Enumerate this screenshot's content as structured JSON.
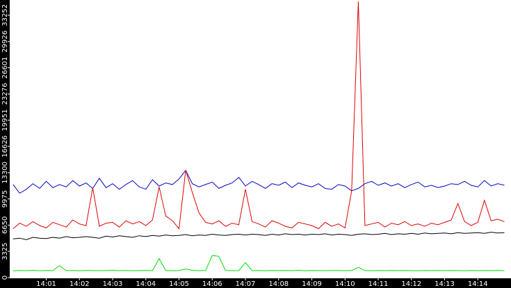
{
  "chart_data": {
    "type": "line",
    "x": [
      0,
      0.2,
      0.4,
      0.6,
      0.8,
      1,
      1.2,
      1.4,
      1.6,
      1.8,
      2,
      2.2,
      2.4,
      2.6,
      2.8,
      3,
      3.2,
      3.4,
      3.6,
      3.8,
      4,
      4.2,
      4.4,
      4.6,
      4.8,
      5,
      5.2,
      5.4,
      5.6,
      5.8,
      6,
      6.2,
      6.4,
      6.6,
      6.8,
      7,
      7.2,
      7.4,
      7.6,
      7.8,
      8,
      8.2,
      8.4,
      8.6,
      8.8,
      9,
      9.2,
      9.4,
      9.6,
      9.8,
      10,
      10.2,
      10.4,
      10.6,
      10.8,
      11,
      11.2,
      11.4,
      11.6,
      11.8,
      12,
      12.2,
      12.4,
      12.6,
      12.8,
      13,
      13.2,
      13.4,
      13.6,
      13.8,
      14,
      14.2,
      14.4,
      14.6,
      14.8
    ],
    "xlim": [
      -0.1,
      15.0
    ],
    "xticks": [
      {
        "value": 1,
        "label": "14:01"
      },
      {
        "value": 2,
        "label": "14:02"
      },
      {
        "value": 3,
        "label": "14:03"
      },
      {
        "value": 4,
        "label": "14:04"
      },
      {
        "value": 5,
        "label": "14:05"
      },
      {
        "value": 6,
        "label": "14:06"
      },
      {
        "value": 7,
        "label": "14:07"
      },
      {
        "value": 8,
        "label": "14:08"
      },
      {
        "value": 9,
        "label": "14:09"
      },
      {
        "value": 10,
        "label": "14:10"
      },
      {
        "value": 11,
        "label": "14:11"
      },
      {
        "value": 12,
        "label": "14:12"
      },
      {
        "value": 13,
        "label": "14:13"
      },
      {
        "value": 14,
        "label": "14:14"
      }
    ],
    "ylim": [
      0,
      35185
    ],
    "yticks": [
      0,
      3325,
      6650,
      9975,
      13300,
      16626,
      19951,
      23276,
      26601,
      29926,
      33252
    ],
    "series": [
      {
        "color": "#0000c8",
        "values": [
          11800,
          10700,
          11200,
          11900,
          11300,
          12200,
          11400,
          11800,
          11500,
          12300,
          11600,
          12000,
          11300,
          12600,
          11400,
          11900,
          11200,
          11800,
          12300,
          11500,
          11200,
          12400,
          11600,
          12000,
          11800,
          12500,
          13600,
          11900,
          11500,
          11800,
          12100,
          11300,
          11700,
          12000,
          12700,
          11600,
          12200,
          11800,
          11300,
          11900,
          11700,
          12100,
          11400,
          12000,
          11700,
          11500,
          11900,
          11300,
          11200,
          11800,
          11600,
          11000,
          11300,
          11900,
          12200,
          11700,
          12000,
          11600,
          11900,
          11400,
          11800,
          12100,
          11500,
          11700,
          11400,
          11600,
          11900,
          11800,
          12200,
          11700,
          11500,
          12300,
          11600,
          11900,
          11700
        ]
      },
      {
        "color": "#e00000",
        "values": [
          6200,
          6900,
          6500,
          7100,
          6600,
          6300,
          7000,
          6700,
          6400,
          7300,
          6800,
          6600,
          11400,
          6500,
          6900,
          7000,
          6400,
          7200,
          6800,
          7100,
          6600,
          7300,
          11500,
          7800,
          7200,
          6200,
          13600,
          10800,
          8200,
          7000,
          6800,
          7200,
          6500,
          6900,
          6700,
          11200,
          7100,
          6800,
          6400,
          7200,
          6900,
          6500,
          6300,
          7000,
          6800,
          6600,
          6200,
          7000,
          6500,
          6800,
          6300,
          11000,
          35000,
          6600,
          6800,
          7000,
          6400,
          6900,
          6700,
          7100,
          6600,
          6800,
          6500,
          6900,
          6700,
          7000,
          7300,
          9400,
          7100,
          6600,
          7000,
          9800,
          7200,
          7400,
          7100
        ]
      },
      {
        "color": "#000000",
        "values": [
          4900,
          5000,
          4800,
          5100,
          5000,
          4950,
          5100,
          5000,
          5200,
          5050,
          5100,
          5200,
          5100,
          5000,
          5250,
          5150,
          5300,
          5200,
          5100,
          5300,
          5200,
          5350,
          5250,
          5400,
          5300,
          5350,
          5450,
          5300,
          5400,
          5350,
          5500,
          5400,
          5350,
          5450,
          5500,
          5400,
          5500,
          5450,
          5350,
          5500,
          5400,
          5550,
          5450,
          5500,
          5400,
          5500,
          5450,
          5550,
          5400,
          5500,
          5450,
          5350,
          5500,
          5550,
          5450,
          5500,
          5600,
          5450,
          5550,
          5500,
          5600,
          5500,
          5650,
          5550,
          5600,
          5650,
          5550,
          5700,
          5600,
          5650,
          5700,
          5600,
          5750,
          5650,
          5700
        ]
      },
      {
        "color": "#00dd00",
        "values": [
          850,
          900,
          880,
          920,
          870,
          900,
          890,
          1500,
          880,
          900,
          870,
          910,
          890,
          880,
          900,
          920,
          880,
          900,
          870,
          890,
          900,
          880,
          2400,
          900,
          870,
          890,
          1100,
          920,
          880,
          900,
          2800,
          2700,
          900,
          880,
          890,
          1900,
          880,
          900,
          870,
          910,
          890,
          900,
          880,
          920,
          870,
          900,
          890,
          880,
          910,
          900,
          880,
          900,
          1300,
          890,
          870,
          900,
          880,
          910,
          890,
          900,
          880,
          870,
          900,
          890,
          910,
          880,
          900,
          890,
          870,
          900,
          880,
          910,
          890,
          900,
          880
        ]
      }
    ]
  }
}
